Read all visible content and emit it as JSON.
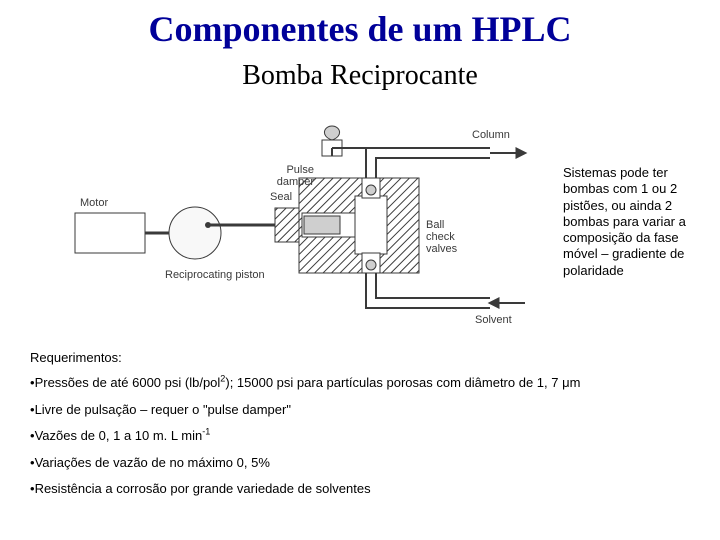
{
  "title": "Componentes de um HPLC",
  "subtitle": "Bomba Reciprocante",
  "colors": {
    "title_color": "#000099",
    "text_color": "#000000",
    "background": "#ffffff",
    "diagram_stroke": "#3a3a3a",
    "diagram_fill_light": "#f2f2f2",
    "diagram_fill_med": "#cfcfcf"
  },
  "typography": {
    "title_family": "Times New Roman",
    "title_size_pt": 28,
    "title_weight": "bold",
    "subtitle_family": "Times New Roman",
    "subtitle_size_pt": 22,
    "body_family": "Arial",
    "body_size_pt": 10,
    "side_note_size_pt": 10
  },
  "diagram": {
    "type": "schematic",
    "labels": {
      "motor": "Motor",
      "piston": "Reciprocating piston",
      "seal": "Seal",
      "pulse_damper": "Pulse damper",
      "column": "Column",
      "ball_check": "Ball check valves",
      "solvent": "Solvent"
    }
  },
  "side_note": "Sistemas pode ter bombas com 1 ou 2 pistões, ou ainda 2 bombas para variar a composição da fase móvel – gradiente de polaridade",
  "requirements_heading": "Requerimentos:",
  "bullets": [
    {
      "prefix": "•",
      "html": "Pressões de até 6000 psi (lb/pol<sup>2</sup>); 15000 psi para partículas porosas com diâmetro de 1, 7 μm"
    },
    {
      "prefix": "•",
      "html": "Livre de pulsação – requer o \"pulse damper\""
    },
    {
      "prefix": "•",
      "html": "Vazões de 0, 1 a 10 m. L min<sup>-1</sup>"
    },
    {
      "prefix": "•",
      "html": "Variações de vazão de no máximo 0, 5%"
    },
    {
      "prefix": "•",
      "html": "Resistência a corrosão por grande variedade de solventes"
    }
  ]
}
